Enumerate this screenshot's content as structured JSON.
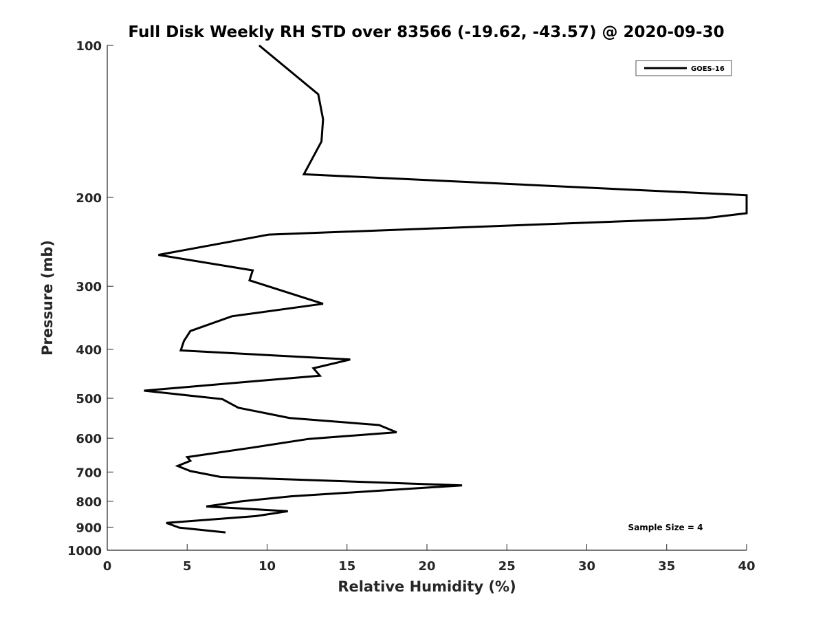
{
  "chart_data": {
    "type": "line",
    "title": "Full Disk Weekly RH STD over 83566 (-19.62, -43.57) @ 2020-09-30",
    "xlabel": "Relative Humidity (%)",
    "ylabel": "Pressure (mb)",
    "xlim": [
      0,
      40
    ],
    "ylim": [
      100,
      1000
    ],
    "y_scale": "log",
    "y_reversed": true,
    "xticks": [
      0,
      5,
      10,
      15,
      20,
      25,
      30,
      35,
      40
    ],
    "yticks": [
      100,
      200,
      300,
      400,
      500,
      600,
      700,
      800,
      900,
      1000
    ],
    "grid": false,
    "legend": {
      "position": "top-right",
      "entries": [
        "GOES-16"
      ]
    },
    "annotation": "Sample Size = 4",
    "series": [
      {
        "name": "GOES-16",
        "color": "#000000",
        "x": [
          9.5,
          13.2,
          13.5,
          13.4,
          12.3,
          40,
          40,
          37.4,
          10.1,
          3.2,
          9.1,
          8.9,
          13.5,
          7.8,
          5.2,
          4.8,
          4.6,
          15.2,
          12.9,
          13.3,
          2.3,
          7.2,
          8.2,
          11.4,
          17.0,
          18.1,
          12.6,
          9.1,
          5.0,
          5.2,
          4.4,
          5.2,
          7.1,
          22.2,
          11.5,
          8.4,
          6.2,
          11.3,
          9.3,
          3.7,
          4.5,
          7.4
        ],
        "y": [
          100,
          125,
          140,
          155,
          180,
          198,
          215,
          220,
          237,
          260,
          279,
          292,
          325,
          344,
          368,
          385,
          402,
          419,
          436,
          451,
          483,
          502,
          522,
          547,
          565,
          584,
          602,
          626,
          654,
          665,
          681,
          697,
          716,
          744,
          782,
          800,
          819,
          837,
          856,
          883,
          902,
          922
        ]
      }
    ]
  }
}
